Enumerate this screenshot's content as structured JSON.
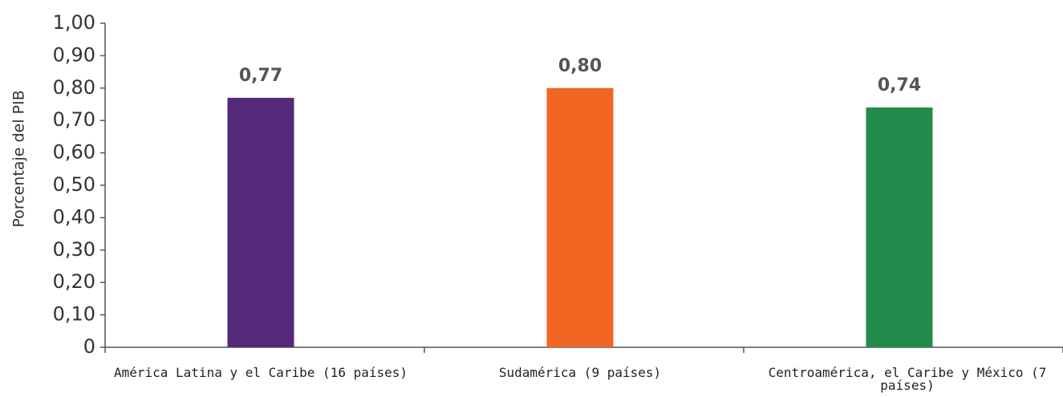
{
  "chart_data": {
    "type": "bar",
    "y_label": "Porcentaje del PIB",
    "categories": [
      "América Latina y el Caribe (16 países)",
      "Sudamérica (9 países)",
      "Centroamérica, el Caribe y México (7 países)"
    ],
    "values": [
      0.77,
      0.8,
      0.74
    ],
    "value_labels": [
      "0,77",
      "0,80",
      "0,74"
    ],
    "colors": [
      "#55297a",
      "#f26522",
      "#228b4c"
    ],
    "ylim": [
      0,
      1.0
    ],
    "yticks": [
      0,
      {
        "value": 0.1,
        "label": "0,10"
      },
      {
        "value": 0.2,
        "label": "0,20"
      },
      {
        "value": 0.3,
        "label": "0,30"
      },
      {
        "value": 0.4,
        "label": "0,40"
      },
      {
        "value": 0.5,
        "label": "0,50"
      },
      {
        "value": 0.6,
        "label": "0,60"
      },
      {
        "value": 0.7,
        "label": "0,70"
      },
      {
        "value": 0.8,
        "label": "0,80"
      },
      {
        "value": 0.9,
        "label": "0,90"
      },
      {
        "value": 1.0,
        "label": "1,00"
      }
    ]
  }
}
